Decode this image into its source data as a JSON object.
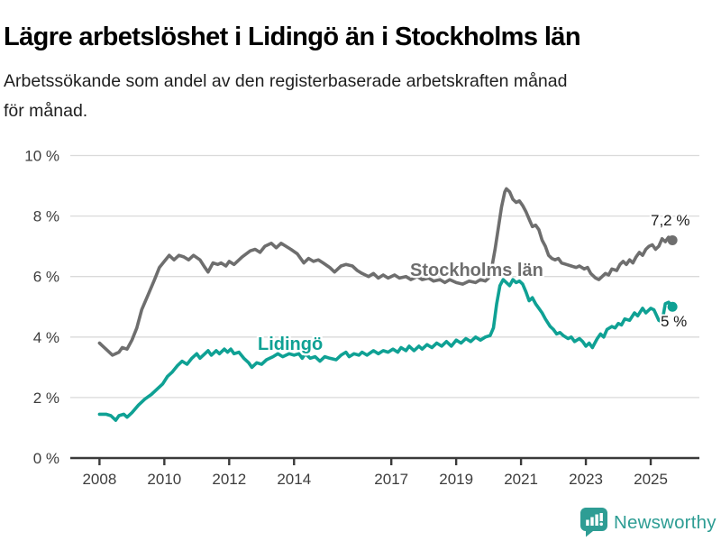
{
  "header": {
    "title": "Lägre arbetslöshet i Lidingö än i Stockholms län",
    "subtitle_lines": [
      "Arbetssökande som andel av den registerbaserade arbetskraften månad",
      "för månad."
    ]
  },
  "chart_data": {
    "type": "line",
    "title": "Lägre arbetslöshet i Lidingö än i Stockholms län",
    "subtitle": "Arbetssökande som andel av den registerbaserade arbetskraften månad för månad.",
    "xlabel": "",
    "ylabel": "",
    "unit": "%",
    "grid": "horizontal",
    "legend": "inline-labels",
    "x_axis": {
      "range": [
        2007.1,
        2026.5
      ],
      "ticks": [
        2008,
        2010,
        2012,
        2014,
        2017,
        2019,
        2021,
        2023,
        2025
      ]
    },
    "y_axis": {
      "range": [
        0,
        10
      ],
      "tick_values": [
        0,
        2,
        4,
        6,
        8,
        10
      ],
      "tick_labels": [
        "0 %",
        "2 %",
        "4 %",
        "6 %",
        "8 %",
        "10 %"
      ]
    },
    "series": [
      {
        "name": "Stockholms län",
        "color": "#6e6e6e",
        "end_label": "7,2 %",
        "last_value": 7.2,
        "points": [
          [
            2008.0,
            3.8
          ],
          [
            2008.2,
            3.6
          ],
          [
            2008.4,
            3.4
          ],
          [
            2008.6,
            3.5
          ],
          [
            2008.7,
            3.65
          ],
          [
            2008.85,
            3.6
          ],
          [
            2009.0,
            3.9
          ],
          [
            2009.15,
            4.3
          ],
          [
            2009.3,
            4.9
          ],
          [
            2009.5,
            5.4
          ],
          [
            2009.7,
            5.9
          ],
          [
            2009.85,
            6.3
          ],
          [
            2010.0,
            6.5
          ],
          [
            2010.15,
            6.7
          ],
          [
            2010.3,
            6.55
          ],
          [
            2010.45,
            6.7
          ],
          [
            2010.6,
            6.65
          ],
          [
            2010.75,
            6.55
          ],
          [
            2010.9,
            6.7
          ],
          [
            2011.1,
            6.55
          ],
          [
            2011.25,
            6.3
          ],
          [
            2011.35,
            6.15
          ],
          [
            2011.5,
            6.45
          ],
          [
            2011.65,
            6.4
          ],
          [
            2011.75,
            6.45
          ],
          [
            2011.9,
            6.35
          ],
          [
            2012.0,
            6.5
          ],
          [
            2012.15,
            6.4
          ],
          [
            2012.4,
            6.65
          ],
          [
            2012.65,
            6.85
          ],
          [
            2012.8,
            6.9
          ],
          [
            2012.95,
            6.8
          ],
          [
            2013.1,
            7.0
          ],
          [
            2013.3,
            7.1
          ],
          [
            2013.45,
            6.95
          ],
          [
            2013.6,
            7.1
          ],
          [
            2013.75,
            7.0
          ],
          [
            2013.9,
            6.9
          ],
          [
            2014.1,
            6.75
          ],
          [
            2014.3,
            6.45
          ],
          [
            2014.45,
            6.6
          ],
          [
            2014.6,
            6.5
          ],
          [
            2014.75,
            6.55
          ],
          [
            2014.9,
            6.45
          ],
          [
            2015.1,
            6.3
          ],
          [
            2015.25,
            6.15
          ],
          [
            2015.45,
            6.35
          ],
          [
            2015.6,
            6.4
          ],
          [
            2015.8,
            6.35
          ],
          [
            2015.95,
            6.2
          ],
          [
            2016.1,
            6.1
          ],
          [
            2016.3,
            6.0
          ],
          [
            2016.45,
            6.1
          ],
          [
            2016.6,
            5.95
          ],
          [
            2016.75,
            6.05
          ],
          [
            2016.9,
            5.95
          ],
          [
            2017.1,
            6.05
          ],
          [
            2017.25,
            5.95
          ],
          [
            2017.45,
            6.0
          ],
          [
            2017.6,
            5.9
          ],
          [
            2017.8,
            6.0
          ],
          [
            2017.95,
            5.9
          ],
          [
            2018.15,
            5.95
          ],
          [
            2018.3,
            5.85
          ],
          [
            2018.5,
            5.9
          ],
          [
            2018.65,
            5.8
          ],
          [
            2018.8,
            5.9
          ],
          [
            2019.0,
            5.8
          ],
          [
            2019.2,
            5.75
          ],
          [
            2019.4,
            5.85
          ],
          [
            2019.6,
            5.8
          ],
          [
            2019.75,
            5.9
          ],
          [
            2019.9,
            5.85
          ],
          [
            2020.0,
            5.95
          ],
          [
            2020.1,
            6.3
          ],
          [
            2020.2,
            6.9
          ],
          [
            2020.3,
            7.6
          ],
          [
            2020.4,
            8.3
          ],
          [
            2020.5,
            8.8
          ],
          [
            2020.55,
            8.9
          ],
          [
            2020.65,
            8.8
          ],
          [
            2020.75,
            8.55
          ],
          [
            2020.85,
            8.45
          ],
          [
            2020.95,
            8.5
          ],
          [
            2021.05,
            8.35
          ],
          [
            2021.15,
            8.15
          ],
          [
            2021.25,
            7.9
          ],
          [
            2021.35,
            7.65
          ],
          [
            2021.45,
            7.7
          ],
          [
            2021.55,
            7.55
          ],
          [
            2021.65,
            7.2
          ],
          [
            2021.75,
            7.0
          ],
          [
            2021.85,
            6.7
          ],
          [
            2021.95,
            6.6
          ],
          [
            2022.05,
            6.55
          ],
          [
            2022.15,
            6.6
          ],
          [
            2022.25,
            6.45
          ],
          [
            2022.4,
            6.4
          ],
          [
            2022.55,
            6.35
          ],
          [
            2022.7,
            6.3
          ],
          [
            2022.8,
            6.35
          ],
          [
            2022.95,
            6.25
          ],
          [
            2023.05,
            6.3
          ],
          [
            2023.15,
            6.1
          ],
          [
            2023.3,
            5.95
          ],
          [
            2023.4,
            5.9
          ],
          [
            2023.5,
            6.0
          ],
          [
            2023.6,
            6.1
          ],
          [
            2023.7,
            6.05
          ],
          [
            2023.8,
            6.25
          ],
          [
            2023.95,
            6.2
          ],
          [
            2024.05,
            6.4
          ],
          [
            2024.15,
            6.5
          ],
          [
            2024.25,
            6.4
          ],
          [
            2024.35,
            6.55
          ],
          [
            2024.45,
            6.45
          ],
          [
            2024.55,
            6.65
          ],
          [
            2024.65,
            6.8
          ],
          [
            2024.75,
            6.7
          ],
          [
            2024.85,
            6.9
          ],
          [
            2024.95,
            7.0
          ],
          [
            2025.05,
            7.05
          ],
          [
            2025.15,
            6.9
          ],
          [
            2025.25,
            7.0
          ],
          [
            2025.35,
            7.25
          ],
          [
            2025.45,
            7.15
          ],
          [
            2025.55,
            7.3
          ],
          [
            2025.67,
            7.2
          ]
        ]
      },
      {
        "name": "Lidingö",
        "color": "#0fa194",
        "end_label": "5 %",
        "last_value": 5.0,
        "points": [
          [
            2008.0,
            1.45
          ],
          [
            2008.2,
            1.45
          ],
          [
            2008.35,
            1.4
          ],
          [
            2008.5,
            1.25
          ],
          [
            2008.6,
            1.4
          ],
          [
            2008.75,
            1.45
          ],
          [
            2008.85,
            1.35
          ],
          [
            2009.0,
            1.5
          ],
          [
            2009.2,
            1.75
          ],
          [
            2009.4,
            1.95
          ],
          [
            2009.6,
            2.1
          ],
          [
            2009.8,
            2.3
          ],
          [
            2009.95,
            2.45
          ],
          [
            2010.1,
            2.7
          ],
          [
            2010.25,
            2.85
          ],
          [
            2010.4,
            3.05
          ],
          [
            2010.55,
            3.2
          ],
          [
            2010.7,
            3.1
          ],
          [
            2010.85,
            3.3
          ],
          [
            2011.0,
            3.45
          ],
          [
            2011.1,
            3.3
          ],
          [
            2011.25,
            3.45
          ],
          [
            2011.35,
            3.55
          ],
          [
            2011.45,
            3.4
          ],
          [
            2011.6,
            3.55
          ],
          [
            2011.7,
            3.45
          ],
          [
            2011.85,
            3.6
          ],
          [
            2011.95,
            3.5
          ],
          [
            2012.05,
            3.6
          ],
          [
            2012.15,
            3.45
          ],
          [
            2012.3,
            3.5
          ],
          [
            2012.45,
            3.3
          ],
          [
            2012.6,
            3.15
          ],
          [
            2012.7,
            3.0
          ],
          [
            2012.85,
            3.15
          ],
          [
            2013.0,
            3.1
          ],
          [
            2013.15,
            3.25
          ],
          [
            2013.35,
            3.35
          ],
          [
            2013.5,
            3.45
          ],
          [
            2013.65,
            3.35
          ],
          [
            2013.85,
            3.45
          ],
          [
            2014.0,
            3.4
          ],
          [
            2014.15,
            3.45
          ],
          [
            2014.25,
            3.3
          ],
          [
            2014.35,
            3.45
          ],
          [
            2014.5,
            3.3
          ],
          [
            2014.65,
            3.35
          ],
          [
            2014.8,
            3.2
          ],
          [
            2014.95,
            3.35
          ],
          [
            2015.1,
            3.3
          ],
          [
            2015.3,
            3.25
          ],
          [
            2015.45,
            3.4
          ],
          [
            2015.6,
            3.5
          ],
          [
            2015.7,
            3.35
          ],
          [
            2015.85,
            3.45
          ],
          [
            2016.0,
            3.4
          ],
          [
            2016.1,
            3.5
          ],
          [
            2016.25,
            3.4
          ],
          [
            2016.45,
            3.55
          ],
          [
            2016.6,
            3.45
          ],
          [
            2016.75,
            3.55
          ],
          [
            2016.9,
            3.5
          ],
          [
            2017.05,
            3.6
          ],
          [
            2017.2,
            3.5
          ],
          [
            2017.3,
            3.65
          ],
          [
            2017.45,
            3.55
          ],
          [
            2017.55,
            3.7
          ],
          [
            2017.7,
            3.55
          ],
          [
            2017.85,
            3.7
          ],
          [
            2017.95,
            3.6
          ],
          [
            2018.1,
            3.75
          ],
          [
            2018.25,
            3.65
          ],
          [
            2018.4,
            3.8
          ],
          [
            2018.55,
            3.7
          ],
          [
            2018.7,
            3.85
          ],
          [
            2018.85,
            3.7
          ],
          [
            2019.0,
            3.9
          ],
          [
            2019.15,
            3.8
          ],
          [
            2019.3,
            3.95
          ],
          [
            2019.45,
            3.85
          ],
          [
            2019.6,
            4.0
          ],
          [
            2019.75,
            3.9
          ],
          [
            2019.9,
            4.0
          ],
          [
            2020.05,
            4.05
          ],
          [
            2020.15,
            4.3
          ],
          [
            2020.25,
            5.1
          ],
          [
            2020.35,
            5.7
          ],
          [
            2020.45,
            5.9
          ],
          [
            2020.55,
            5.8
          ],
          [
            2020.65,
            5.7
          ],
          [
            2020.75,
            5.9
          ],
          [
            2020.85,
            5.8
          ],
          [
            2020.95,
            5.85
          ],
          [
            2021.05,
            5.75
          ],
          [
            2021.15,
            5.5
          ],
          [
            2021.25,
            5.2
          ],
          [
            2021.35,
            5.3
          ],
          [
            2021.45,
            5.1
          ],
          [
            2021.55,
            4.95
          ],
          [
            2021.65,
            4.8
          ],
          [
            2021.75,
            4.6
          ],
          [
            2021.9,
            4.35
          ],
          [
            2022.0,
            4.25
          ],
          [
            2022.1,
            4.1
          ],
          [
            2022.2,
            4.15
          ],
          [
            2022.3,
            4.05
          ],
          [
            2022.45,
            3.95
          ],
          [
            2022.55,
            4.0
          ],
          [
            2022.65,
            3.85
          ],
          [
            2022.8,
            3.95
          ],
          [
            2022.9,
            3.85
          ],
          [
            2023.0,
            3.7
          ],
          [
            2023.1,
            3.8
          ],
          [
            2023.2,
            3.65
          ],
          [
            2023.35,
            3.95
          ],
          [
            2023.45,
            4.1
          ],
          [
            2023.55,
            4.0
          ],
          [
            2023.65,
            4.25
          ],
          [
            2023.8,
            4.35
          ],
          [
            2023.9,
            4.3
          ],
          [
            2024.0,
            4.45
          ],
          [
            2024.1,
            4.4
          ],
          [
            2024.2,
            4.6
          ],
          [
            2024.35,
            4.55
          ],
          [
            2024.5,
            4.8
          ],
          [
            2024.6,
            4.7
          ],
          [
            2024.75,
            4.95
          ],
          [
            2024.85,
            4.8
          ],
          [
            2025.0,
            4.95
          ],
          [
            2025.1,
            4.9
          ],
          [
            2025.25,
            4.55
          ],
          [
            2025.35,
            4.5
          ],
          [
            2025.45,
            5.1
          ],
          [
            2025.55,
            5.15
          ],
          [
            2025.67,
            5.0
          ]
        ]
      }
    ]
  },
  "footer": {
    "brand": "Newsworthy",
    "logo_icon": "newsworthy-bar-chart-bubble-icon",
    "brand_color": "#2e9d94"
  },
  "style_colors": {
    "grid": "#dadada",
    "axis": "#3a3a3a",
    "tick_text": "#3d3d3d"
  }
}
